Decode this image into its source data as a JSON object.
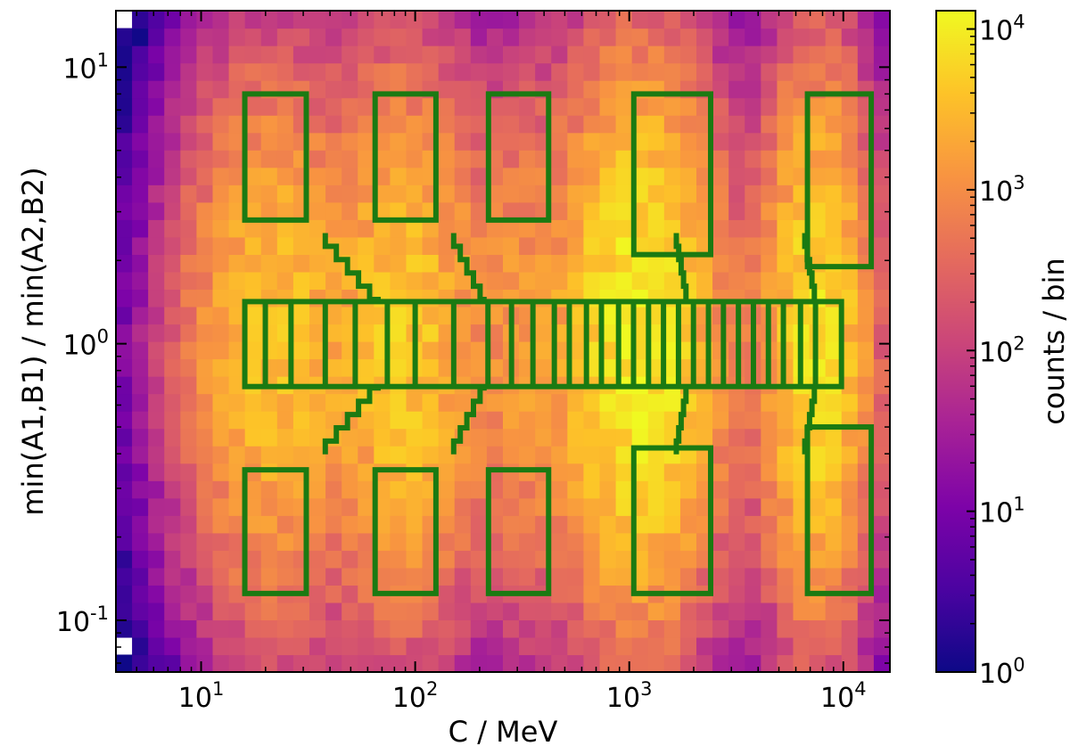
{
  "chart_data": {
    "type": "heatmap",
    "xlabel": "C / MeV",
    "ylabel": "min(A1,B1) / min(A2,B2)",
    "x_scale": "log",
    "y_scale": "log",
    "xlim": [
      4,
      16500
    ],
    "ylim": [
      0.065,
      16
    ],
    "x_ticks": [
      {
        "base": "10",
        "exp": "1",
        "value": 10
      },
      {
        "base": "10",
        "exp": "2",
        "value": 100
      },
      {
        "base": "10",
        "exp": "3",
        "value": 1000
      },
      {
        "base": "10",
        "exp": "4",
        "value": 10000
      }
    ],
    "y_ticks": [
      {
        "base": "10",
        "exp": "-1",
        "value": 0.1
      },
      {
        "base": "10",
        "exp": "0",
        "value": 1
      },
      {
        "base": "10",
        "exp": "1",
        "value": 10
      }
    ],
    "colorbar": {
      "label": "counts / bin",
      "scale": "log",
      "range": [
        1,
        13000
      ],
      "colormap": "plasma",
      "ticks": [
        {
          "base": "10",
          "exp": "0",
          "value": 1
        },
        {
          "base": "10",
          "exp": "1",
          "value": 10
        },
        {
          "base": "10",
          "exp": "2",
          "value": 100
        },
        {
          "base": "10",
          "exp": "3",
          "value": 1000
        },
        {
          "base": "10",
          "exp": "4",
          "value": 10000
        }
      ]
    },
    "selection_box_color": "#1b7a12",
    "bands": [
      {
        "x_center": 22,
        "log_width": 0.2,
        "peak": 4000
      },
      {
        "x_center": 90,
        "log_width": 0.17,
        "peak": 5000
      },
      {
        "x_center": 330,
        "log_width": 0.15,
        "peak": 1500
      },
      {
        "x_center": 1100,
        "log_width": 0.17,
        "peak": 12000
      },
      {
        "x_center": 2800,
        "log_width": 0.15,
        "peak": 300
      },
      {
        "x_center": 7500,
        "log_width": 0.12,
        "peak": 8000
      }
    ],
    "selection_regions": [
      {
        "name": "upper-box-1",
        "x": [
          16,
          31
        ],
        "y": [
          2.8,
          8
        ]
      },
      {
        "name": "upper-box-2",
        "x": [
          65,
          125
        ],
        "y": [
          2.8,
          8
        ]
      },
      {
        "name": "upper-box-3",
        "x": [
          220,
          420
        ],
        "y": [
          2.8,
          8
        ]
      },
      {
        "name": "upper-box-4",
        "x": [
          1050,
          2400
        ],
        "y": [
          2.1,
          8
        ]
      },
      {
        "name": "upper-box-5",
        "x": [
          6800,
          13500
        ],
        "y": [
          1.9,
          8
        ]
      },
      {
        "name": "lower-box-1",
        "x": [
          16,
          31
        ],
        "y": [
          0.125,
          0.35
        ]
      },
      {
        "name": "lower-box-2",
        "x": [
          65,
          125
        ],
        "y": [
          0.125,
          0.35
        ]
      },
      {
        "name": "lower-box-3",
        "x": [
          220,
          420
        ],
        "y": [
          0.125,
          0.35
        ]
      },
      {
        "name": "lower-box-4",
        "x": [
          1050,
          2400
        ],
        "y": [
          0.125,
          0.42
        ]
      },
      {
        "name": "lower-box-5",
        "x": [
          6800,
          13500
        ],
        "y": [
          0.125,
          0.5
        ]
      }
    ],
    "center_strip": {
      "y": [
        0.7,
        1.42
      ],
      "x": [
        16,
        9800
      ]
    }
  }
}
